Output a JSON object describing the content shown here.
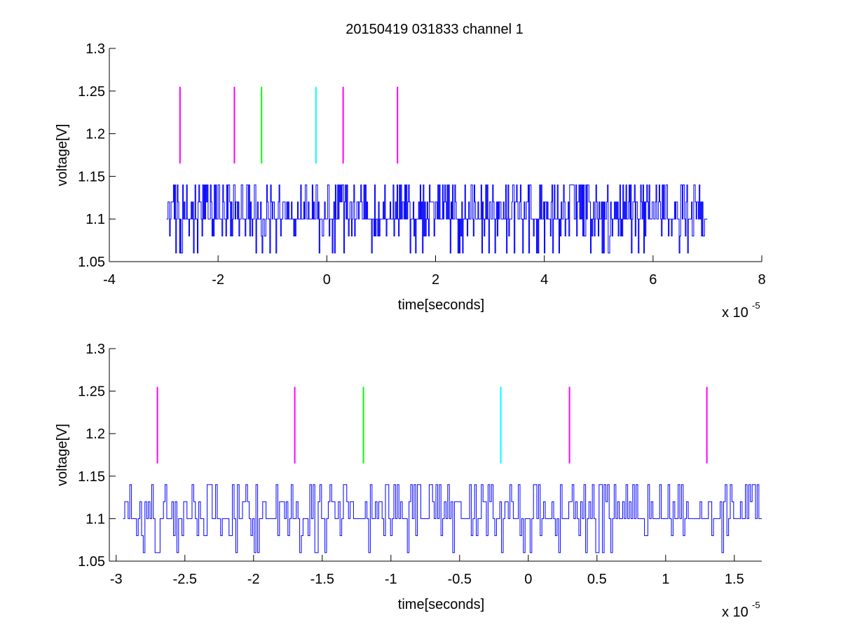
{
  "figure": {
    "title": "20150419 031833 channel 1"
  },
  "chart_data": [
    {
      "type": "line",
      "title": "20150419 031833 channel 1",
      "xlabel": "time[seconds]",
      "ylabel": "voltage[V]",
      "x_exponent": "x 10",
      "x_exponent_power": "-5",
      "xlim": [
        -4e-05,
        8e-05
      ],
      "ylim": [
        1.05,
        1.3
      ],
      "xticks": [
        -4e-05,
        -2e-05,
        0,
        2e-05,
        4e-05,
        6e-05,
        8e-05
      ],
      "xtick_labels": [
        "-4",
        "-2",
        "0",
        "2",
        "4",
        "6",
        "8"
      ],
      "yticks": [
        1.05,
        1.1,
        1.15,
        1.2,
        1.25,
        1.3
      ],
      "ytick_labels": [
        "1.05",
        "1.1",
        "1.15",
        "1.2",
        "1.25",
        "1.3"
      ],
      "grid": false,
      "signal": {
        "color": "#0000ff",
        "x_start": -2.95e-05,
        "x_end": 7e-05,
        "baseline": 1.1,
        "levels": [
          1.06,
          1.08,
          1.1,
          1.12,
          1.14
        ]
      },
      "markers": [
        {
          "x": -2.7e-05,
          "y_range": [
            1.165,
            1.255
          ],
          "color": "#ff00ff"
        },
        {
          "x": -1.7e-05,
          "y_range": [
            1.165,
            1.255
          ],
          "color": "#ff00ff"
        },
        {
          "x": -1.2e-05,
          "y_range": [
            1.165,
            1.255
          ],
          "color": "#00ff00"
        },
        {
          "x": -2e-06,
          "y_range": [
            1.165,
            1.255
          ],
          "color": "#00ffff"
        },
        {
          "x": 3e-06,
          "y_range": [
            1.165,
            1.255
          ],
          "color": "#ff00ff"
        },
        {
          "x": 1.3e-05,
          "y_range": [
            1.165,
            1.255
          ],
          "color": "#ff00ff"
        }
      ]
    },
    {
      "type": "line",
      "xlabel": "time[seconds]",
      "ylabel": "voltage[V]",
      "x_exponent": "x 10",
      "x_exponent_power": "-5",
      "xlim": [
        -3.05e-05,
        1.7e-05
      ],
      "ylim": [
        1.05,
        1.3
      ],
      "xticks": [
        -3e-05,
        -2.5e-05,
        -2e-05,
        -1.5e-05,
        -1e-05,
        -5e-06,
        0,
        5e-06,
        1e-05,
        1.5e-05
      ],
      "xtick_labels": [
        "-3",
        "-2.5",
        "-2",
        "-1.5",
        "-1",
        "-0.5",
        "0",
        "0.5",
        "1",
        "1.5"
      ],
      "yticks": [
        1.05,
        1.1,
        1.15,
        1.2,
        1.25,
        1.3
      ],
      "ytick_labels": [
        "1.05",
        "1.1",
        "1.15",
        "1.2",
        "1.25",
        "1.3"
      ],
      "grid": false,
      "signal": {
        "color": "#0000ff",
        "x_start": -2.95e-05,
        "x_end": 1.7e-05,
        "baseline": 1.1,
        "levels": [
          1.06,
          1.08,
          1.1,
          1.12,
          1.14
        ]
      },
      "markers": [
        {
          "x": -2.7e-05,
          "y_range": [
            1.165,
            1.255
          ],
          "color": "#ff00ff"
        },
        {
          "x": -1.7e-05,
          "y_range": [
            1.165,
            1.255
          ],
          "color": "#ff00ff"
        },
        {
          "x": -1.2e-05,
          "y_range": [
            1.165,
            1.255
          ],
          "color": "#00ff00"
        },
        {
          "x": -2e-06,
          "y_range": [
            1.165,
            1.255
          ],
          "color": "#00ffff"
        },
        {
          "x": 3e-06,
          "y_range": [
            1.165,
            1.255
          ],
          "color": "#ff00ff"
        },
        {
          "x": 1.3e-05,
          "y_range": [
            1.165,
            1.255
          ],
          "color": "#ff00ff"
        }
      ]
    }
  ]
}
